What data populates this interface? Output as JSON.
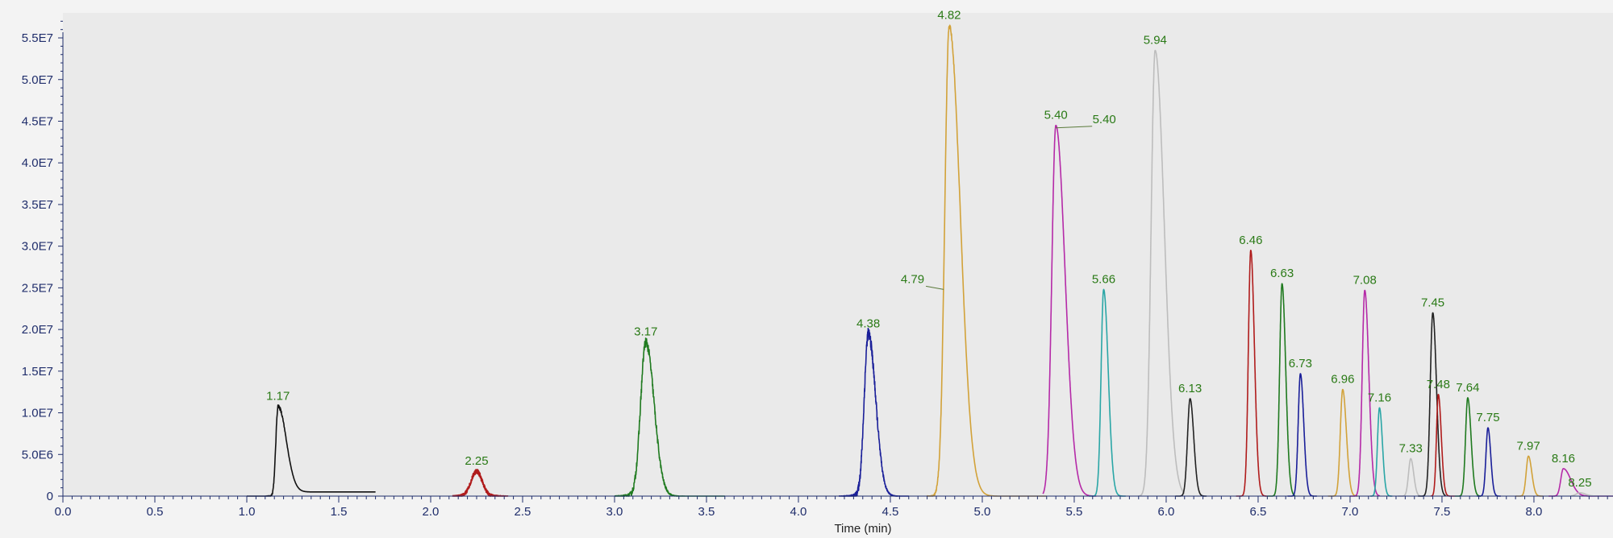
{
  "chart_data": {
    "type": "line",
    "xlabel": "Time (min)",
    "ylabel": "",
    "xlim": [
      0,
      8.43
    ],
    "ylim": [
      0,
      58000000
    ],
    "xticks": [
      0.0,
      0.5,
      1.0,
      1.5,
      2.0,
      2.5,
      3.0,
      3.5,
      4.0,
      4.5,
      5.0,
      5.5,
      6.0,
      6.5,
      7.0,
      7.5,
      8.0
    ],
    "xtick_labels": [
      "0.0",
      "0.5",
      "1.0",
      "1.5",
      "2.0",
      "2.5",
      "3.0",
      "3.5",
      "4.0",
      "4.5",
      "5.0",
      "5.5",
      "6.0",
      "6.5",
      "7.0",
      "7.5",
      "8.0"
    ],
    "yticks": [
      0,
      5000000,
      10000000,
      15000000,
      20000000,
      25000000,
      30000000,
      35000000,
      40000000,
      45000000,
      50000000,
      55000000
    ],
    "ytick_labels": [
      "0",
      "5.0E6",
      "1.0E7",
      "1.5E7",
      "2.0E7",
      "2.5E7",
      "3.0E7",
      "3.5E7",
      "4.0E7",
      "4.5E7",
      "5.0E7",
      "5.5E7"
    ],
    "grid": false,
    "legend": "none",
    "peaks": [
      {
        "label": "1.17",
        "rt": 1.17,
        "height": 10800000,
        "sigma": 0.012,
        "tail": 0.045,
        "start": 1.0,
        "end": 1.7,
        "baseline": 500000,
        "color": "#111111",
        "noise": 250000
      },
      {
        "label": "2.25",
        "rt": 2.25,
        "height": 3000000,
        "sigma": 0.03,
        "tail": 0.03,
        "start": 2.12,
        "end": 2.42,
        "baseline": 0,
        "color": "#b01c1c",
        "noise": 300000
      },
      {
        "label": "3.17",
        "rt": 3.17,
        "height": 18500000,
        "sigma": 0.028,
        "tail": 0.045,
        "start": 3.0,
        "end": 3.6,
        "baseline": 0,
        "color": "#1f7a1f",
        "noise": 600000
      },
      {
        "label": "4.38",
        "rt": 4.38,
        "height": 19500000,
        "sigma": 0.022,
        "tail": 0.04,
        "start": 4.22,
        "end": 4.6,
        "baseline": 0,
        "color": "#1a1f99",
        "noise": 700000
      },
      {
        "label": "4.82",
        "rt": 4.82,
        "height": 56500000,
        "sigma": 0.024,
        "tail": 0.06,
        "start": 4.7,
        "end": 5.35,
        "baseline": 0,
        "color": "#d2a239",
        "noise": 300000
      },
      {
        "label": "5.40",
        "rt": 5.4,
        "height": 44500000,
        "sigma": 0.022,
        "tail": 0.05,
        "start": 5.33,
        "end": 5.62,
        "baseline": 0,
        "color": "#b52aa8",
        "noise": 0
      },
      {
        "label": "5.66",
        "rt": 5.66,
        "height": 24800000,
        "sigma": 0.014,
        "tail": 0.025,
        "start": 5.58,
        "end": 5.78,
        "baseline": 0,
        "color": "#2aa6a6",
        "noise": 0
      },
      {
        "label": "5.94",
        "rt": 5.94,
        "height": 53500000,
        "sigma": 0.022,
        "tail": 0.05,
        "start": 5.85,
        "end": 6.1,
        "baseline": 0,
        "color": "#bdbdbd",
        "noise": 0
      },
      {
        "label": "6.13",
        "rt": 6.13,
        "height": 11700000,
        "sigma": 0.014,
        "tail": 0.02,
        "start": 6.05,
        "end": 6.22,
        "baseline": 0,
        "color": "#222222",
        "noise": 0
      },
      {
        "label": "6.46",
        "rt": 6.46,
        "height": 29500000,
        "sigma": 0.013,
        "tail": 0.02,
        "start": 6.38,
        "end": 6.55,
        "baseline": 0,
        "color": "#b01c1c",
        "noise": 0
      },
      {
        "label": "6.63",
        "rt": 6.63,
        "height": 25500000,
        "sigma": 0.013,
        "tail": 0.02,
        "start": 6.55,
        "end": 6.7,
        "baseline": 0,
        "color": "#1f7a1f",
        "noise": 0
      },
      {
        "label": "6.73",
        "rt": 6.73,
        "height": 14700000,
        "sigma": 0.012,
        "tail": 0.018,
        "start": 6.66,
        "end": 6.82,
        "baseline": 0,
        "color": "#1a1f99",
        "noise": 0
      },
      {
        "label": "6.96",
        "rt": 6.96,
        "height": 12800000,
        "sigma": 0.013,
        "tail": 0.02,
        "start": 6.88,
        "end": 7.04,
        "baseline": 0,
        "color": "#d2a239",
        "noise": 0
      },
      {
        "label": "7.08",
        "rt": 7.08,
        "height": 24700000,
        "sigma": 0.014,
        "tail": 0.022,
        "start": 7.0,
        "end": 7.16,
        "baseline": 0,
        "color": "#b52aa8",
        "noise": 0
      },
      {
        "label": "7.16",
        "rt": 7.16,
        "height": 10600000,
        "sigma": 0.011,
        "tail": 0.016,
        "start": 7.11,
        "end": 7.23,
        "baseline": 0,
        "color": "#2aa6a6",
        "noise": 0
      },
      {
        "label": "7.33",
        "rt": 7.33,
        "height": 4500000,
        "sigma": 0.012,
        "tail": 0.016,
        "start": 7.26,
        "end": 7.4,
        "baseline": 0,
        "color": "#bdbdbd",
        "noise": 0
      },
      {
        "label": "7.45",
        "rt": 7.45,
        "height": 22000000,
        "sigma": 0.014,
        "tail": 0.02,
        "start": 7.37,
        "end": 7.52,
        "baseline": 0,
        "color": "#222222",
        "noise": 0
      },
      {
        "label": "7.48",
        "rt": 7.48,
        "height": 12200000,
        "sigma": 0.01,
        "tail": 0.016,
        "start": 7.44,
        "end": 7.57,
        "baseline": 0,
        "color": "#b01c1c",
        "noise": 0
      },
      {
        "label": "7.64",
        "rt": 7.64,
        "height": 11800000,
        "sigma": 0.012,
        "tail": 0.018,
        "start": 7.57,
        "end": 7.71,
        "baseline": 0,
        "color": "#1f7a1f",
        "noise": 0
      },
      {
        "label": "7.75",
        "rt": 7.75,
        "height": 8200000,
        "sigma": 0.011,
        "tail": 0.015,
        "start": 7.69,
        "end": 7.82,
        "baseline": 0,
        "color": "#1a1f99",
        "noise": 0
      },
      {
        "label": "7.97",
        "rt": 7.97,
        "height": 4800000,
        "sigma": 0.012,
        "tail": 0.018,
        "start": 7.9,
        "end": 8.05,
        "baseline": 0,
        "color": "#d2a239",
        "noise": 0
      },
      {
        "label": "8.16",
        "rt": 8.16,
        "height": 3300000,
        "sigma": 0.014,
        "tail": 0.04,
        "start": 8.08,
        "end": 8.43,
        "baseline": 0,
        "color": "#b52aa8",
        "noise": 0
      },
      {
        "label": "8.25",
        "rt": 8.25,
        "height": 400000,
        "sigma": 0.02,
        "tail": 0.03,
        "start": 8.2,
        "end": 8.43,
        "baseline": 0,
        "color": "#bdbdbd",
        "noise": 0
      }
    ],
    "shoulder_labels": [
      {
        "label": "4.79",
        "rt": 4.79,
        "height": 25000000
      },
      {
        "label": "5.40",
        "rt": 5.4,
        "height": 44200000
      }
    ]
  }
}
